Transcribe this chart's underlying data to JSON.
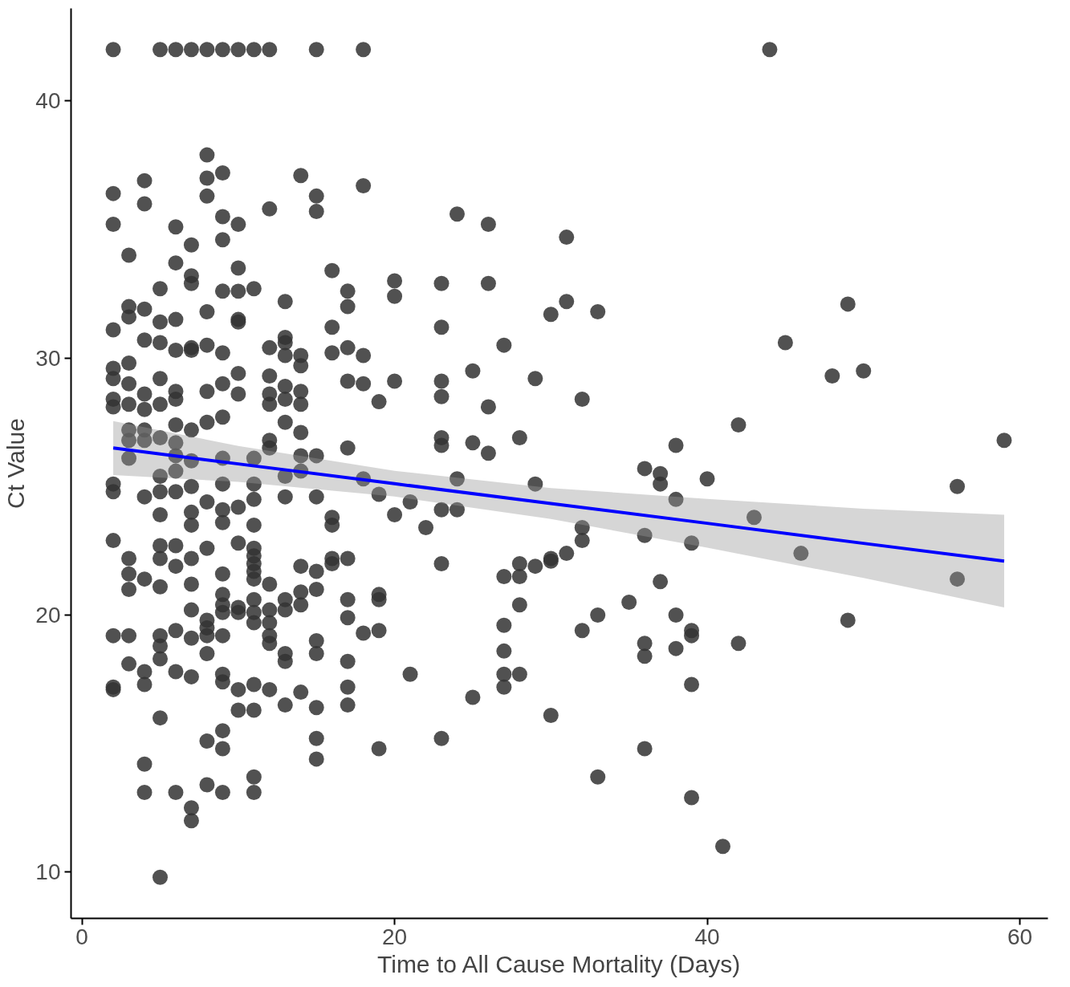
{
  "chart_data": {
    "type": "scatter",
    "xlabel": "Time to All Cause Mortality (Days)",
    "ylabel": "Ct Value",
    "xlim": [
      -0.7,
      61.8
    ],
    "ylim": [
      8.2,
      43.6
    ],
    "xticks": [
      0,
      20,
      40,
      60
    ],
    "yticks": [
      10,
      20,
      30,
      40
    ],
    "grid": false,
    "series": [
      {
        "color": "#333333",
        "marker": "circle",
        "x": [
          2,
          5,
          6,
          7,
          8,
          9,
          10,
          11,
          12,
          15,
          18,
          44,
          2,
          2,
          2,
          2,
          2,
          2,
          2,
          2,
          2,
          2,
          2,
          2,
          2,
          3,
          3,
          3,
          3,
          3,
          3,
          3,
          3,
          3,
          3,
          3,
          3,
          3,
          3,
          4,
          4,
          4,
          4,
          4,
          4,
          4,
          4,
          4,
          4,
          4,
          4,
          4,
          4,
          5,
          5,
          5,
          5,
          5,
          5,
          5,
          5,
          5,
          5,
          5,
          5,
          5,
          5,
          5,
          5,
          5,
          6,
          6,
          6,
          6,
          6,
          6,
          6,
          6,
          6,
          6,
          6,
          6,
          6,
          6,
          6,
          6,
          7,
          7,
          7,
          7,
          7,
          7,
          7,
          7,
          7,
          7,
          7,
          7,
          7,
          7,
          7,
          7,
          7,
          8,
          8,
          8,
          8,
          8,
          8,
          8,
          8,
          8,
          8,
          8,
          8,
          8,
          8,
          8,
          9,
          9,
          9,
          9,
          9,
          9,
          9,
          9,
          9,
          9,
          9,
          9,
          9,
          9,
          9,
          9,
          9,
          9,
          9,
          9,
          9,
          10,
          10,
          10,
          10,
          10,
          10,
          10,
          10,
          10,
          10,
          10,
          10,
          10,
          11,
          11,
          11,
          11,
          11,
          11,
          11,
          11,
          11,
          11,
          11,
          11,
          11,
          11,
          11,
          11,
          11,
          12,
          12,
          12,
          12,
          12,
          12,
          12,
          12,
          12,
          12,
          12,
          12,
          12,
          13,
          13,
          13,
          13,
          13,
          13,
          13,
          13,
          13,
          13,
          13,
          13,
          13,
          13,
          14,
          14,
          14,
          14,
          14,
          14,
          14,
          14,
          14,
          14,
          14,
          14,
          15,
          15,
          15,
          15,
          15,
          15,
          15,
          15,
          15,
          15,
          15,
          16,
          16,
          16,
          16,
          16,
          16,
          16,
          17,
          17,
          17,
          17,
          17,
          17,
          17,
          17,
          17,
          17,
          17,
          18,
          18,
          18,
          18,
          18,
          19,
          19,
          19,
          19,
          19,
          19,
          20,
          20,
          20,
          20,
          21,
          21,
          22,
          23,
          23,
          23,
          23,
          23,
          23,
          23,
          23,
          23,
          24,
          24,
          24,
          25,
          25,
          25,
          26,
          26,
          26,
          26,
          27,
          27,
          27,
          27,
          27,
          27,
          28,
          28,
          28,
          28,
          28,
          29,
          29,
          29,
          30,
          30,
          30,
          30,
          31,
          31,
          31,
          32,
          32,
          32,
          32,
          33,
          33,
          33,
          35,
          36,
          36,
          36,
          36,
          36,
          37,
          37,
          37,
          38,
          38,
          38,
          38,
          39,
          39,
          39,
          39,
          39,
          40,
          41,
          42,
          42,
          43,
          45,
          46,
          48,
          49,
          49,
          50,
          56,
          56,
          59
        ],
        "values": [
          42,
          42,
          42,
          42,
          42,
          42,
          42,
          42,
          42,
          42,
          42,
          42,
          36.4,
          35.2,
          31.1,
          29.6,
          29.2,
          28.4,
          28.1,
          25.1,
          24.8,
          22.9,
          19.2,
          17.2,
          17.1,
          34.0,
          32.0,
          31.6,
          29.8,
          29.0,
          28.2,
          27.2,
          26.8,
          26.1,
          22.2,
          21.6,
          21.0,
          19.2,
          18.1,
          36.9,
          36.0,
          31.9,
          30.7,
          28.6,
          28.0,
          27.2,
          26.8,
          24.6,
          21.4,
          17.8,
          17.3,
          14.2,
          13.1,
          32.7,
          31.4,
          30.6,
          29.2,
          28.2,
          26.9,
          25.4,
          24.8,
          23.9,
          22.7,
          22.2,
          21.1,
          19.2,
          18.8,
          18.3,
          16.0,
          9.8,
          35.1,
          33.7,
          31.5,
          30.3,
          28.7,
          28.4,
          27.4,
          26.7,
          26.2,
          25.6,
          24.8,
          22.7,
          21.9,
          19.4,
          17.8,
          13.1,
          34.4,
          33.2,
          32.9,
          30.4,
          30.3,
          27.2,
          26.0,
          25.0,
          24.0,
          23.5,
          22.2,
          21.2,
          20.2,
          19.1,
          17.6,
          12.5,
          12.0,
          37.9,
          37.0,
          36.3,
          31.8,
          30.5,
          28.7,
          27.5,
          24.4,
          22.6,
          19.8,
          19.5,
          19.2,
          18.5,
          15.1,
          13.4,
          37.2,
          35.5,
          34.6,
          32.6,
          30.2,
          29.0,
          27.7,
          26.1,
          25.1,
          24.1,
          23.6,
          21.6,
          20.8,
          20.4,
          20.1,
          19.2,
          17.7,
          17.4,
          15.5,
          14.8,
          13.1,
          35.2,
          33.5,
          32.6,
          31.5,
          31.4,
          29.4,
          28.6,
          24.2,
          22.8,
          20.3,
          20.1,
          17.1,
          16.3,
          32.7,
          26.1,
          25.1,
          24.5,
          23.5,
          22.6,
          22.3,
          22.0,
          21.7,
          21.4,
          20.6,
          20.1,
          19.7,
          17.3,
          16.3,
          13.7,
          13.1,
          35.8,
          30.4,
          29.3,
          28.6,
          28.2,
          26.8,
          26.5,
          21.2,
          20.2,
          19.7,
          19.2,
          18.9,
          17.1,
          32.2,
          30.8,
          30.6,
          30.1,
          28.9,
          28.4,
          27.5,
          25.4,
          24.6,
          20.6,
          20.2,
          18.5,
          18.2,
          16.5,
          37.1,
          30.1,
          29.7,
          28.7,
          28.2,
          27.1,
          26.2,
          25.6,
          21.9,
          20.9,
          20.4,
          17.0,
          36.3,
          35.7,
          26.2,
          24.6,
          21.7,
          21.0,
          19.0,
          18.5,
          16.4,
          15.2,
          14.4,
          33.4,
          31.2,
          30.2,
          23.8,
          23.5,
          22.2,
          22.0,
          32.6,
          32.0,
          30.4,
          29.1,
          26.5,
          22.2,
          20.6,
          19.9,
          18.2,
          17.2,
          16.5,
          36.7,
          30.1,
          29.0,
          25.3,
          19.3,
          28.3,
          24.7,
          20.8,
          20.6,
          19.4,
          14.8,
          33.0,
          32.4,
          29.1,
          23.9,
          24.4,
          17.7,
          23.4,
          32.9,
          31.2,
          29.1,
          28.5,
          26.9,
          26.6,
          24.1,
          22.0,
          15.2,
          35.6,
          25.3,
          24.1,
          29.5,
          26.7,
          16.8,
          35.2,
          32.9,
          28.1,
          26.3,
          30.5,
          21.5,
          19.6,
          18.6,
          17.7,
          17.2,
          26.9,
          22.0,
          21.5,
          20.4,
          17.7,
          29.2,
          25.1,
          21.9,
          31.7,
          22.2,
          22.1,
          16.1,
          34.7,
          32.2,
          22.4,
          28.4,
          23.4,
          22.9,
          19.4,
          31.8,
          20.0,
          13.7,
          20.5,
          25.7,
          23.1,
          18.9,
          18.4,
          14.8,
          25.5,
          25.1,
          21.3,
          26.6,
          24.5,
          20.0,
          18.7,
          22.8,
          19.4,
          19.2,
          17.3,
          12.9,
          25.3,
          11.0,
          27.4,
          18.9,
          23.8,
          30.6,
          22.4,
          29.3,
          32.1,
          19.8,
          29.5,
          25.0,
          21.4,
          26.8
        ]
      },
      {
        "type": "line",
        "color": "#0000ff",
        "marker": "none",
        "x": [
          2,
          10,
          20,
          30,
          40,
          50,
          59
        ],
        "values": [
          26.5,
          25.88,
          25.11,
          24.34,
          23.57,
          22.79,
          22.1
        ],
        "lower": [
          25.45,
          25.18,
          24.61,
          23.74,
          22.62,
          21.44,
          20.3
        ],
        "upper": [
          27.55,
          26.58,
          25.61,
          24.94,
          24.52,
          24.14,
          23.9
        ]
      }
    ]
  }
}
